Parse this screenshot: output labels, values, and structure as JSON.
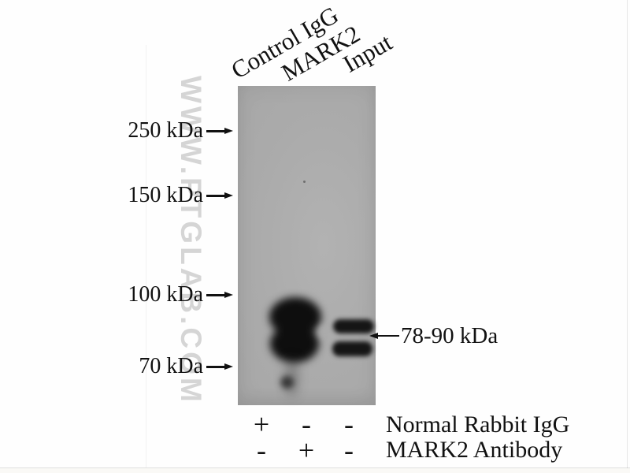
{
  "watermark": "WWW.PTGLAB.COM",
  "lane_labels": [
    "Control IgG",
    "MARK2",
    "Input"
  ],
  "mw_markers": [
    {
      "label": "250 kDa"
    },
    {
      "label": "150 kDa"
    },
    {
      "label": "100 kDa"
    },
    {
      "label": "70 kDa"
    }
  ],
  "band_annotation": "78-90 kDa",
  "treatment_rows": [
    {
      "label": "Normal Rabbit IgG",
      "values": [
        "+",
        "-",
        "-"
      ]
    },
    {
      "label": "MARK2 Antibody",
      "values": [
        "-",
        "+",
        "-"
      ]
    }
  ],
  "blot": {
    "bands": [
      {
        "lane": "MARK2",
        "kda": "78-90",
        "intensity": "strong"
      },
      {
        "lane": "Input",
        "kda": "~88",
        "intensity": "moderate"
      },
      {
        "lane": "Input",
        "kda": "~80",
        "intensity": "moderate"
      }
    ],
    "colors": {
      "membrane": "#ababab",
      "band": "#111111",
      "watermark": "#d5d5d5",
      "text": "#111111"
    }
  }
}
